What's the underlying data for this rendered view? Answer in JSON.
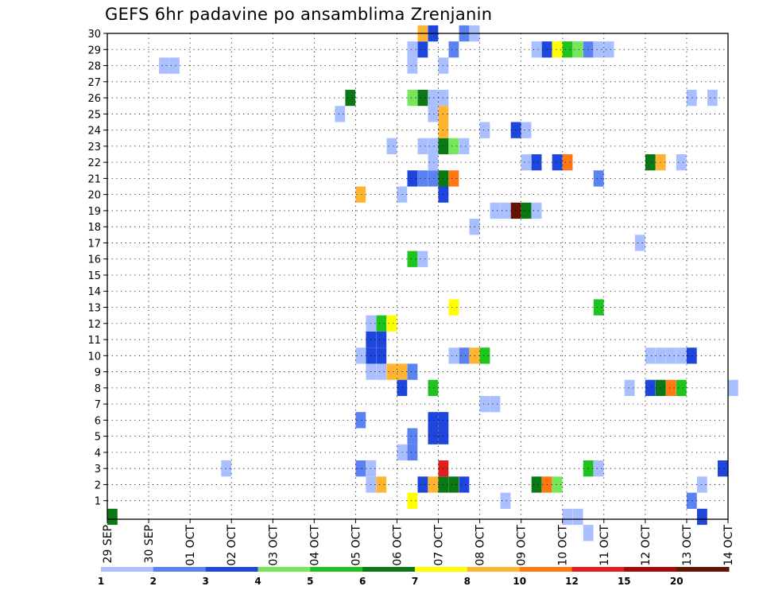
{
  "title": "GEFS 6hr padavine po ansamblima Zrenjanin",
  "chart_data": {
    "type": "heatmap",
    "title": "GEFS 6hr padavine po ansamblima Zrenjanin",
    "x_unit": "6-hour step",
    "x_range": [
      0,
      60
    ],
    "x_ticks": [
      {
        "step": 0,
        "label": "29 SEP"
      },
      {
        "step": 4,
        "label": "30 SEP"
      },
      {
        "step": 8,
        "label": "01 OCT"
      },
      {
        "step": 12,
        "label": "02 OCT"
      },
      {
        "step": 16,
        "label": "03 OCT"
      },
      {
        "step": 20,
        "label": "04 OCT"
      },
      {
        "step": 24,
        "label": "05 OCT"
      },
      {
        "step": 28,
        "label": "06 OCT"
      },
      {
        "step": 32,
        "label": "07 OCT"
      },
      {
        "step": 36,
        "label": "08 OCT"
      },
      {
        "step": 40,
        "label": "09 OCT"
      },
      {
        "step": 44,
        "label": "10 OCT"
      },
      {
        "step": 48,
        "label": "11 OCT"
      },
      {
        "step": 52,
        "label": "12 OCT"
      },
      {
        "step": 56,
        "label": "13 OCT"
      },
      {
        "step": 60,
        "label": "14 OCT"
      }
    ],
    "y_ticks": [
      1,
      2,
      3,
      4,
      5,
      6,
      7,
      8,
      9,
      10,
      11,
      12,
      13,
      14,
      15,
      16,
      17,
      18,
      19,
      20,
      21,
      22,
      23,
      24,
      25,
      26,
      27,
      28,
      29,
      30
    ],
    "y_range": [
      0,
      30
    ],
    "grid": true,
    "legend": {
      "placement": "bottom",
      "labels": [
        "1",
        "2",
        "3",
        "4",
        "5",
        "6",
        "7",
        "8",
        "10",
        "12",
        "15",
        "20"
      ],
      "colors": [
        "#aabfff",
        "#5a82f0",
        "#1e46dc",
        "#78e65a",
        "#1ec31e",
        "#0a7814",
        "#ffff00",
        "#ffb432",
        "#ff7814",
        "#e11e1e",
        "#a50a0a",
        "#641400"
      ]
    },
    "levels": [
      "1-2",
      "2-3",
      "3-4",
      "4-5",
      "5-6",
      "6-7",
      "7-8",
      "8-10",
      "10-12",
      "12-15",
      "15-20",
      ">20"
    ],
    "cells": [
      [
        0,
        0,
        5
      ],
      [
        5,
        28,
        0
      ],
      [
        6,
        28,
        0
      ],
      [
        11,
        3,
        0
      ],
      [
        22,
        25,
        0
      ],
      [
        23,
        26,
        5
      ],
      [
        24,
        6,
        1
      ],
      [
        24,
        3,
        1
      ],
      [
        25,
        3,
        0
      ],
      [
        24,
        10,
        0
      ],
      [
        25,
        10,
        2
      ],
      [
        26,
        10,
        2
      ],
      [
        25,
        11,
        2
      ],
      [
        26,
        11,
        2
      ],
      [
        25,
        9,
        0
      ],
      [
        26,
        9,
        0
      ],
      [
        27,
        9,
        7
      ],
      [
        28,
        9,
        7
      ],
      [
        29,
        9,
        1
      ],
      [
        25,
        12,
        0
      ],
      [
        26,
        12,
        4
      ],
      [
        27,
        12,
        6
      ],
      [
        25,
        2,
        0
      ],
      [
        26,
        2,
        7
      ],
      [
        24,
        20,
        7
      ],
      [
        27,
        23,
        0
      ],
      [
        28,
        8,
        2
      ],
      [
        28,
        4,
        0
      ],
      [
        28,
        20,
        0
      ],
      [
        29,
        5,
        1
      ],
      [
        29,
        4,
        1
      ],
      [
        29,
        1,
        6
      ],
      [
        30,
        2,
        2
      ],
      [
        31,
        2,
        7
      ],
      [
        32,
        2,
        5
      ],
      [
        33,
        2,
        5
      ],
      [
        34,
        2,
        2
      ],
      [
        32,
        3,
        9
      ],
      [
        31,
        5,
        2
      ],
      [
        32,
        5,
        2
      ],
      [
        31,
        6,
        2
      ],
      [
        32,
        6,
        2
      ],
      [
        31,
        8,
        4
      ],
      [
        29,
        16,
        4
      ],
      [
        30,
        16,
        0
      ],
      [
        29,
        21,
        2
      ],
      [
        30,
        21,
        1
      ],
      [
        31,
        21,
        1
      ],
      [
        32,
        21,
        5
      ],
      [
        33,
        21,
        8
      ],
      [
        32,
        20,
        2
      ],
      [
        30,
        23,
        0
      ],
      [
        31,
        23,
        0
      ],
      [
        32,
        23,
        5
      ],
      [
        33,
        23,
        3
      ],
      [
        34,
        23,
        0
      ],
      [
        31,
        22,
        0
      ],
      [
        32,
        24,
        7
      ],
      [
        31,
        25,
        0
      ],
      [
        29,
        26,
        3
      ],
      [
        30,
        26,
        5
      ],
      [
        31,
        26,
        0
      ],
      [
        32,
        26,
        0
      ],
      [
        32,
        25,
        7
      ],
      [
        29,
        28,
        0
      ],
      [
        32,
        28,
        0
      ],
      [
        29,
        29,
        0
      ],
      [
        30,
        29,
        2
      ],
      [
        33,
        29,
        1
      ],
      [
        30,
        30,
        7
      ],
      [
        31,
        30,
        2
      ],
      [
        34,
        30,
        1
      ],
      [
        35,
        30,
        0
      ],
      [
        33,
        13,
        6
      ],
      [
        33,
        10,
        0
      ],
      [
        34,
        10,
        1
      ],
      [
        35,
        10,
        7
      ],
      [
        36,
        10,
        4
      ],
      [
        35,
        18,
        0
      ],
      [
        36,
        7,
        0
      ],
      [
        37,
        7,
        0
      ],
      [
        36,
        24,
        0
      ],
      [
        37,
        19,
        0
      ],
      [
        38,
        1,
        0
      ],
      [
        38,
        19,
        0
      ],
      [
        39,
        19,
        11
      ],
      [
        40,
        19,
        5
      ],
      [
        39,
        24,
        2
      ],
      [
        40,
        24,
        0
      ],
      [
        40,
        22,
        0
      ],
      [
        41,
        22,
        2
      ],
      [
        41,
        19,
        0
      ],
      [
        41,
        29,
        0
      ],
      [
        42,
        29,
        2
      ],
      [
        43,
        29,
        6
      ],
      [
        44,
        29,
        4
      ],
      [
        45,
        29,
        3
      ],
      [
        46,
        29,
        1
      ],
      [
        47,
        29,
        0
      ],
      [
        41,
        2,
        5
      ],
      [
        42,
        2,
        8
      ],
      [
        43,
        2,
        3
      ],
      [
        43,
        22,
        2
      ],
      [
        44,
        22,
        8
      ],
      [
        44,
        0,
        0
      ],
      [
        45,
        0,
        0
      ],
      [
        46,
        -1,
        0
      ],
      [
        46,
        3,
        4
      ],
      [
        47,
        3,
        0
      ],
      [
        47,
        13,
        4
      ],
      [
        47,
        21,
        1
      ],
      [
        48,
        29,
        0
      ],
      [
        50,
        8,
        0
      ],
      [
        51,
        17,
        0
      ],
      [
        52,
        10,
        0
      ],
      [
        52,
        8,
        2
      ],
      [
        53,
        8,
        5
      ],
      [
        54,
        8,
        8
      ],
      [
        55,
        8,
        4
      ],
      [
        52,
        22,
        5
      ],
      [
        53,
        22,
        7
      ],
      [
        53,
        10,
        0
      ],
      [
        54,
        10,
        0
      ],
      [
        55,
        10,
        0
      ],
      [
        56,
        10,
        2
      ],
      [
        55,
        22,
        0
      ],
      [
        56,
        1,
        1
      ],
      [
        56,
        26,
        0
      ],
      [
        58,
        26,
        0
      ],
      [
        57,
        2,
        0
      ],
      [
        57,
        0,
        2
      ],
      [
        59,
        3,
        2
      ],
      [
        60,
        8,
        0
      ]
    ]
  }
}
